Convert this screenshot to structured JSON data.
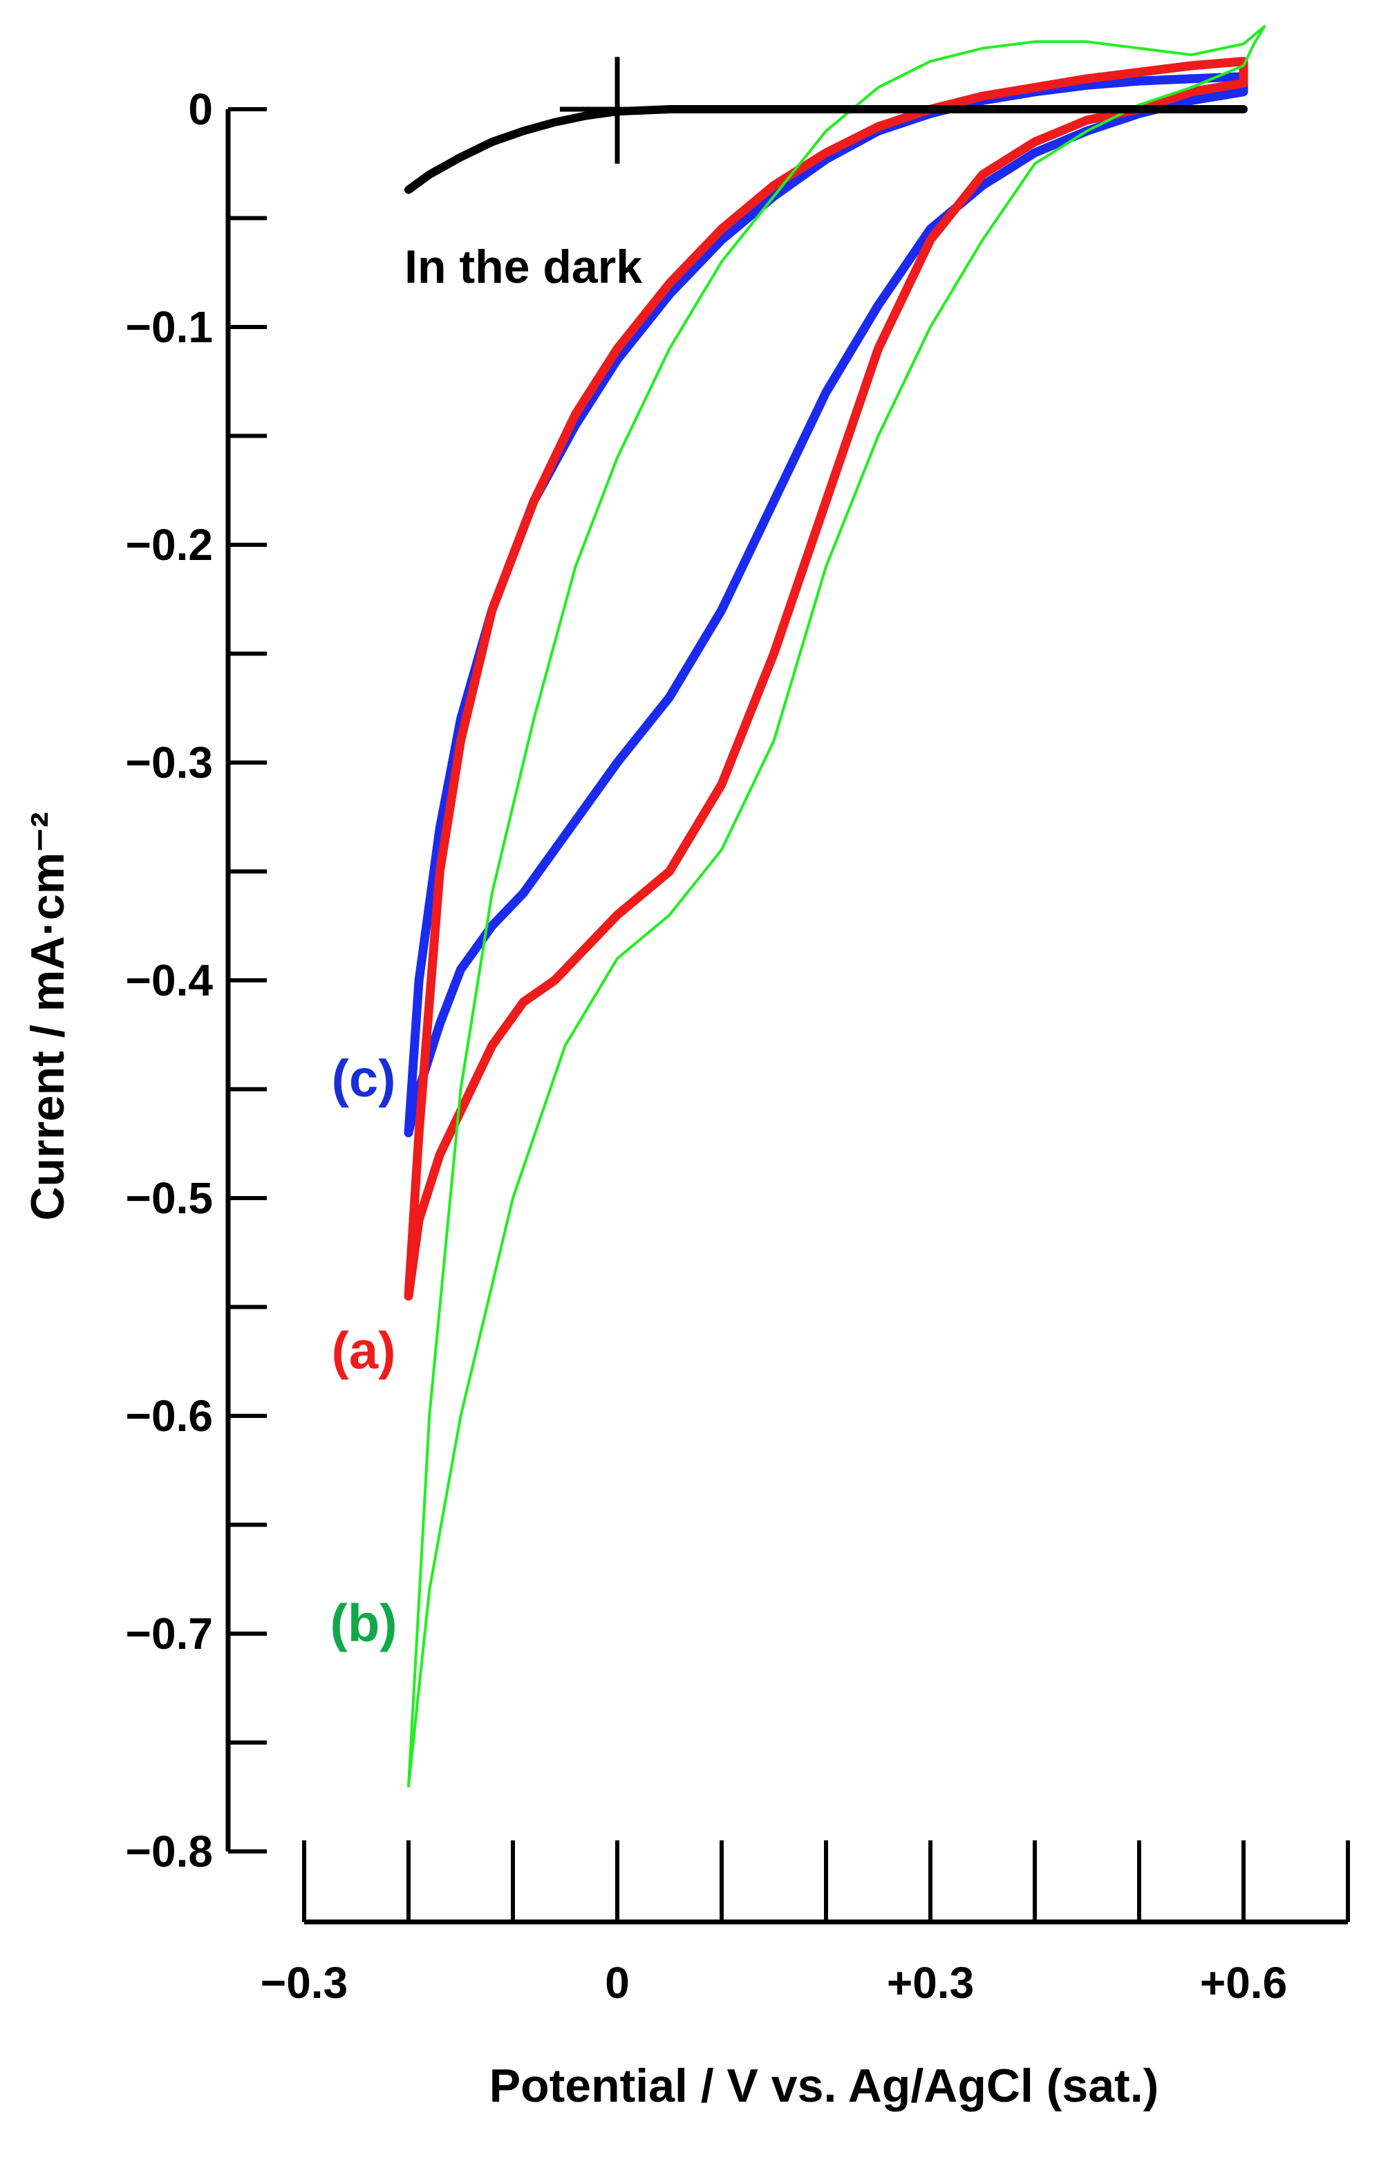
{
  "chart_data": {
    "type": "line",
    "xlabel": "Potential / V vs. Ag/AgCl (sat.)",
    "ylabel": "Current / mA·cm⁻²",
    "xlim": [
      -0.3,
      0.7
    ],
    "ylim": [
      -0.8,
      0.0
    ],
    "x_ticks": [
      {
        "value": -0.3,
        "label": "−0.3"
      },
      {
        "value": 0,
        "label": "0"
      },
      {
        "value": 0.3,
        "label": "+0.3"
      },
      {
        "value": 0.6,
        "label": "+0.6"
      }
    ],
    "x_minor_ticks": [
      -0.3,
      -0.2,
      -0.1,
      0,
      0.1,
      0.2,
      0.3,
      0.4,
      0.5,
      0.6,
      0.7
    ],
    "y_ticks": [
      {
        "value": 0,
        "label": "0"
      },
      {
        "value": -0.1,
        "label": "−0.1"
      },
      {
        "value": -0.2,
        "label": "−0.2"
      },
      {
        "value": -0.3,
        "label": "−0.3"
      },
      {
        "value": -0.4,
        "label": "−0.4"
      },
      {
        "value": -0.5,
        "label": "−0.5"
      },
      {
        "value": -0.6,
        "label": "−0.6"
      },
      {
        "value": -0.7,
        "label": "−0.7"
      },
      {
        "value": -0.8,
        "label": "−0.8"
      }
    ],
    "y_minor_ticks": [
      0,
      -0.05,
      -0.1,
      -0.15,
      -0.2,
      -0.25,
      -0.3,
      -0.35,
      -0.4,
      -0.45,
      -0.5,
      -0.55,
      -0.6,
      -0.65,
      -0.7,
      -0.75,
      -0.8
    ],
    "grid": false,
    "annotations": [
      {
        "text": "In the dark",
        "x": -0.09,
        "y": -0.072
      }
    ],
    "series": [
      {
        "label": "(a)",
        "color": "#ee1c1c",
        "label_pos": {
          "x": -0.243,
          "y": -0.57
        },
        "x": [
          -0.2,
          -0.19,
          -0.17,
          -0.15,
          -0.12,
          -0.08,
          -0.04,
          0.0,
          0.05,
          0.1,
          0.15,
          0.2,
          0.25,
          0.3,
          0.35,
          0.4,
          0.45,
          0.5,
          0.55,
          0.6,
          0.6,
          0.55,
          0.5,
          0.45,
          0.4,
          0.35,
          0.3,
          0.25,
          0.2,
          0.15,
          0.1,
          0.05,
          0.0,
          -0.03,
          -0.06,
          -0.09,
          -0.12,
          -0.15,
          -0.17,
          -0.19,
          -0.2
        ],
        "y": [
          -0.545,
          -0.47,
          -0.35,
          -0.29,
          -0.23,
          -0.18,
          -0.14,
          -0.11,
          -0.08,
          -0.055,
          -0.035,
          -0.02,
          -0.008,
          0.0,
          0.006,
          0.01,
          0.014,
          0.017,
          0.02,
          0.022,
          0.012,
          0.008,
          0.0,
          -0.005,
          -0.015,
          -0.03,
          -0.06,
          -0.11,
          -0.18,
          -0.25,
          -0.31,
          -0.35,
          -0.37,
          -0.385,
          -0.4,
          -0.41,
          -0.43,
          -0.46,
          -0.48,
          -0.51,
          -0.545
        ]
      },
      {
        "label": "(b)",
        "color": "#22ee22",
        "label_color": "#11a84a",
        "label_pos": {
          "x": -0.243,
          "y": -0.695
        },
        "x": [
          -0.2,
          -0.18,
          -0.15,
          -0.12,
          -0.08,
          -0.04,
          0.0,
          0.05,
          0.1,
          0.15,
          0.2,
          0.25,
          0.3,
          0.35,
          0.4,
          0.45,
          0.5,
          0.55,
          0.6,
          0.62,
          0.61,
          0.6,
          0.55,
          0.5,
          0.45,
          0.4,
          0.35,
          0.3,
          0.25,
          0.2,
          0.15,
          0.1,
          0.05,
          0.0,
          -0.05,
          -0.1,
          -0.15,
          -0.18,
          -0.2
        ],
        "y": [
          -0.77,
          -0.6,
          -0.45,
          -0.36,
          -0.28,
          -0.21,
          -0.16,
          -0.11,
          -0.07,
          -0.04,
          -0.01,
          0.01,
          0.022,
          0.028,
          0.031,
          0.031,
          0.028,
          0.025,
          0.03,
          0.038,
          0.03,
          0.02,
          0.01,
          0.002,
          -0.01,
          -0.025,
          -0.06,
          -0.1,
          -0.15,
          -0.21,
          -0.29,
          -0.34,
          -0.37,
          -0.39,
          -0.43,
          -0.5,
          -0.6,
          -0.68,
          -0.77
        ]
      },
      {
        "label": "(c)",
        "color": "#1b2bee",
        "label_color": "#1a2fd6",
        "label_pos": {
          "x": -0.243,
          "y": -0.445
        },
        "x": [
          -0.2,
          -0.19,
          -0.17,
          -0.15,
          -0.12,
          -0.08,
          -0.04,
          0.0,
          0.05,
          0.1,
          0.15,
          0.2,
          0.25,
          0.3,
          0.35,
          0.4,
          0.45,
          0.5,
          0.55,
          0.6,
          0.6,
          0.55,
          0.5,
          0.45,
          0.4,
          0.35,
          0.3,
          0.25,
          0.2,
          0.15,
          0.1,
          0.05,
          0.0,
          -0.03,
          -0.06,
          -0.09,
          -0.12,
          -0.15,
          -0.17,
          -0.19,
          -0.2
        ],
        "y": [
          -0.47,
          -0.4,
          -0.33,
          -0.28,
          -0.23,
          -0.18,
          -0.145,
          -0.115,
          -0.085,
          -0.06,
          -0.04,
          -0.023,
          -0.01,
          -0.002,
          0.004,
          0.008,
          0.011,
          0.013,
          0.014,
          0.015,
          0.008,
          0.004,
          -0.002,
          -0.01,
          -0.02,
          -0.035,
          -0.055,
          -0.09,
          -0.13,
          -0.18,
          -0.23,
          -0.27,
          -0.3,
          -0.32,
          -0.34,
          -0.36,
          -0.375,
          -0.395,
          -0.42,
          -0.45,
          -0.47
        ]
      },
      {
        "label": "In the dark",
        "color": "#000000",
        "x": [
          -0.2,
          -0.18,
          -0.15,
          -0.12,
          -0.09,
          -0.06,
          -0.03,
          0.0,
          0.05,
          0.1,
          0.2,
          0.3,
          0.4,
          0.5,
          0.6
        ],
        "y": [
          -0.037,
          -0.03,
          -0.022,
          -0.015,
          -0.01,
          -0.006,
          -0.003,
          -0.001,
          0.0,
          0.0,
          0.0,
          0.0,
          0.0,
          0.0,
          0.0
        ]
      }
    ]
  }
}
